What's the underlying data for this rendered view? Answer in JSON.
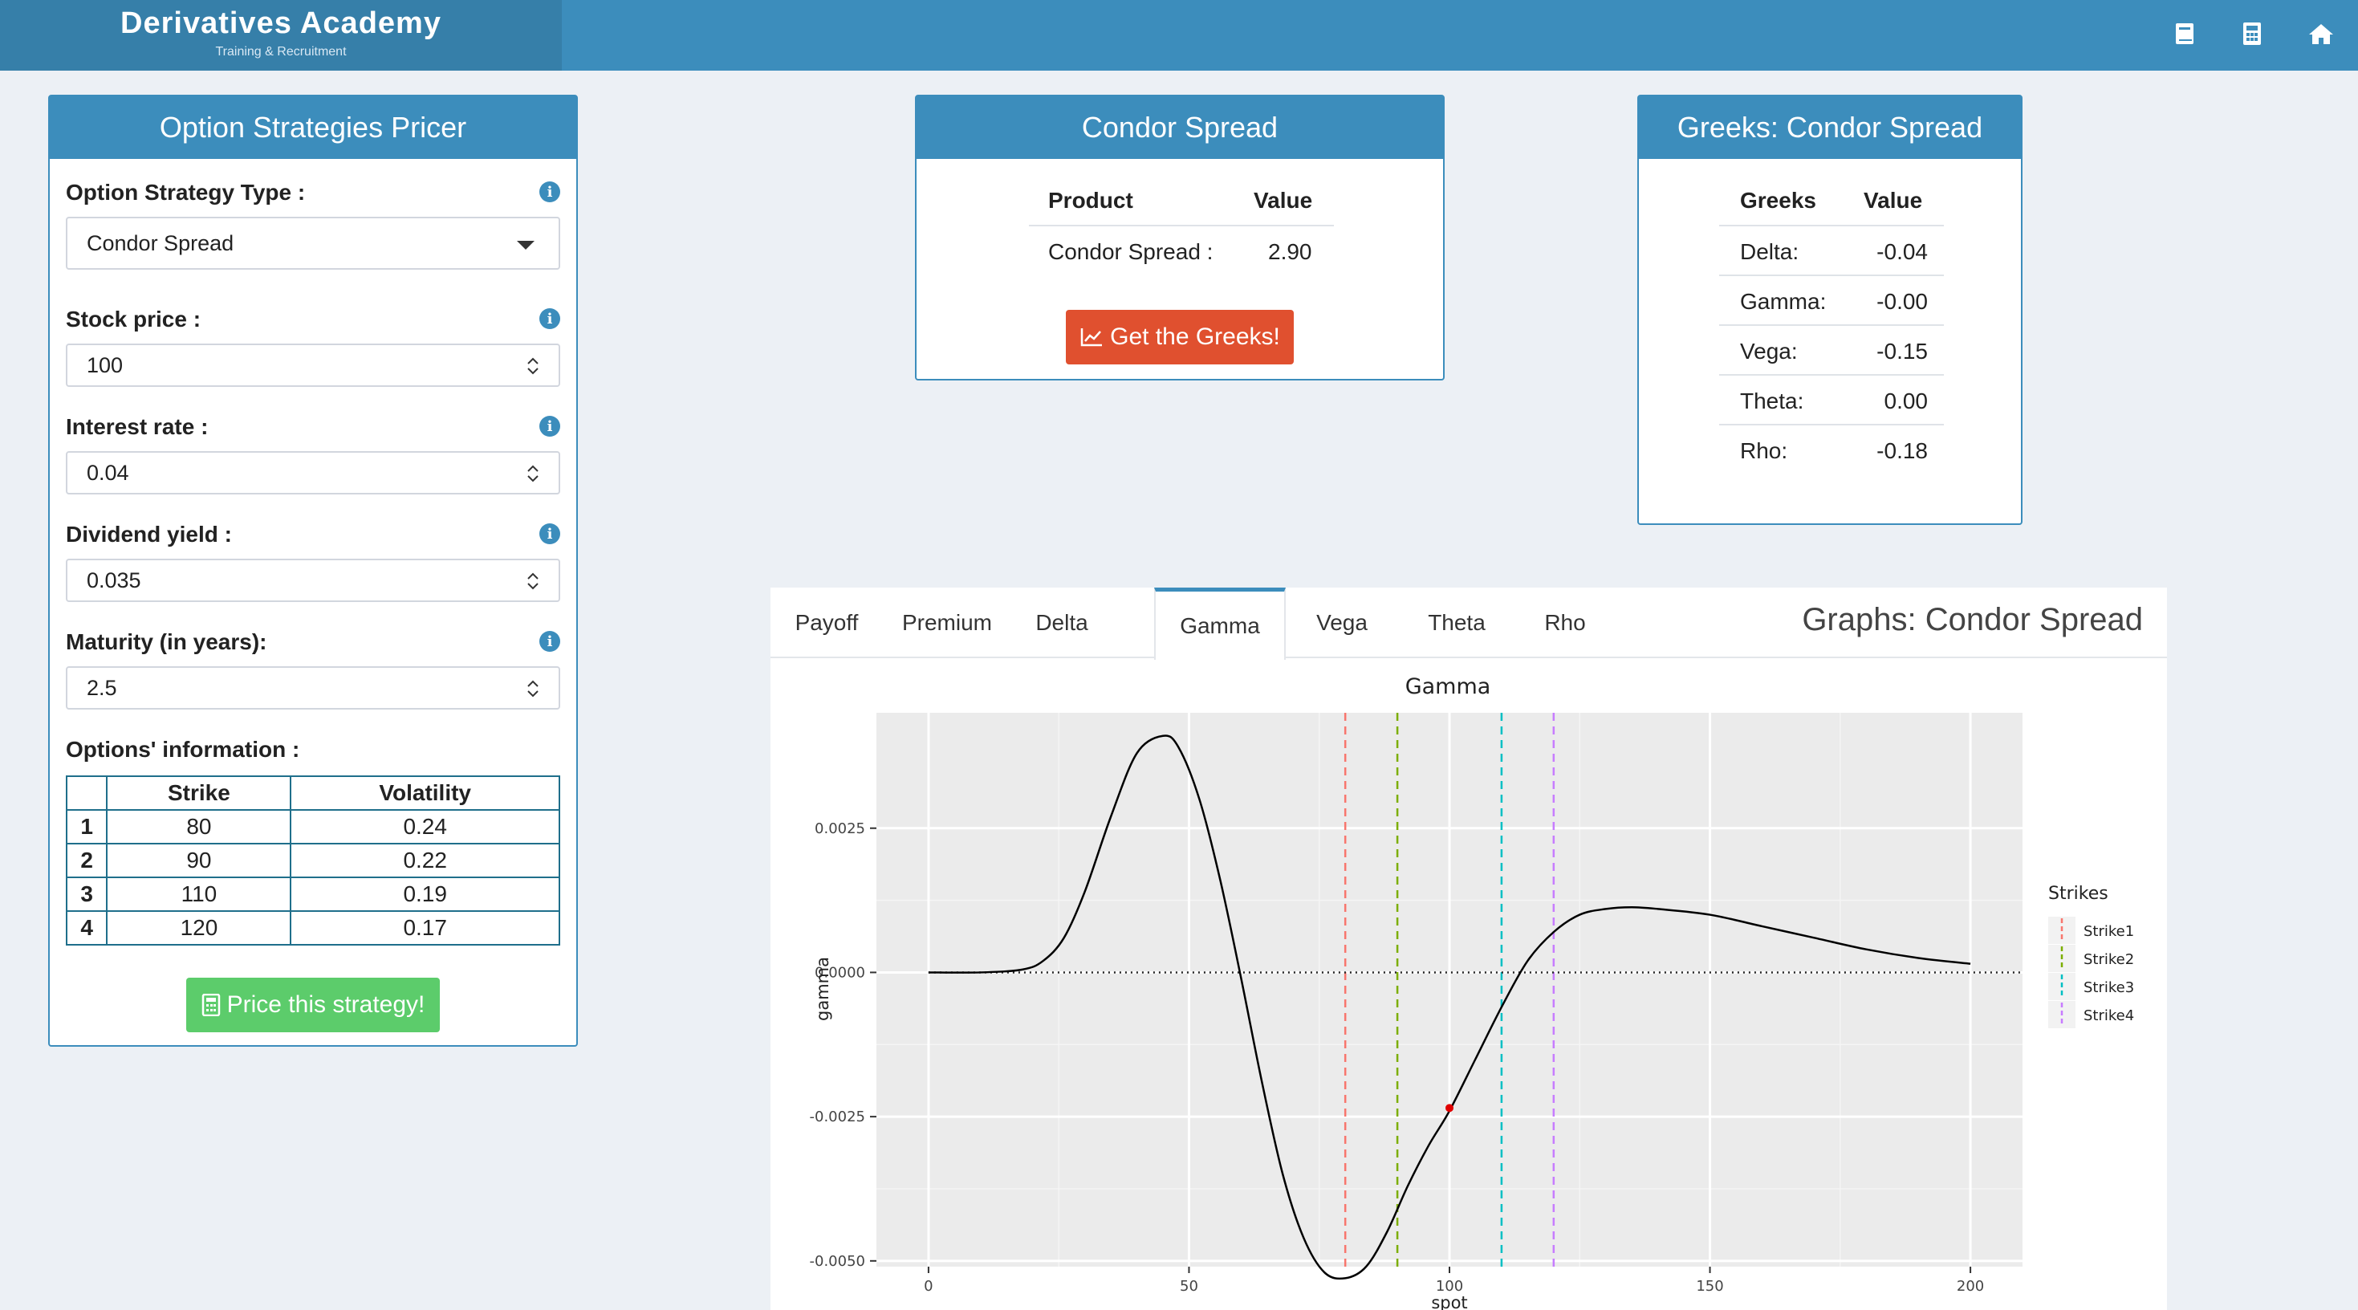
{
  "brand": {
    "title": "Derivatives Academy",
    "subtitle": "Training & Recruitment"
  },
  "header_icons": [
    "book-icon",
    "calculator-icon",
    "home-icon"
  ],
  "pricer": {
    "title": "Option Strategies Pricer",
    "strategy_label": "Option Strategy Type :",
    "strategy_value": "Condor Spread",
    "stock_label": "Stock price :",
    "stock_value": "100",
    "rate_label": "Interest rate :",
    "rate_value": "0.04",
    "div_label": "Dividend yield :",
    "div_value": "0.035",
    "maturity_label": "Maturity (in years):",
    "maturity_value": "2.5",
    "options_label": "Options' information :",
    "table_headers": [
      "",
      "Strike",
      "Volatility"
    ],
    "rows": [
      [
        "1",
        "80",
        "0.24"
      ],
      [
        "2",
        "90",
        "0.22"
      ],
      [
        "3",
        "110",
        "0.19"
      ],
      [
        "4",
        "120",
        "0.17"
      ]
    ],
    "price_button": "Price this strategy!"
  },
  "condor": {
    "title": "Condor Spread",
    "col_product": "Product",
    "col_value": "Value",
    "product": "Condor Spread :",
    "value": "2.90",
    "greeks_button": "Get the Greeks!"
  },
  "greeks": {
    "title": "Greeks: Condor Spread",
    "col_greeks": "Greeks",
    "col_value": "Value",
    "rows": [
      [
        "Delta:",
        "-0.04"
      ],
      [
        "Gamma:",
        "-0.00"
      ],
      [
        "Vega:",
        "-0.15"
      ],
      [
        "Theta:",
        "0.00"
      ],
      [
        "Rho:",
        "-0.18"
      ]
    ]
  },
  "graphs": {
    "tabs": [
      "Payoff",
      "Premium",
      "Delta",
      "Gamma",
      "Vega",
      "Theta",
      "Rho"
    ],
    "active_tab": "Gamma",
    "title": "Graphs: Condor Spread"
  },
  "chart_data": {
    "type": "line",
    "title": "Gamma",
    "xlabel": "spot",
    "ylabel": "gamma",
    "xlim": [
      -10,
      210
    ],
    "ylim": [
      -0.0051,
      0.0045
    ],
    "xticks": [
      0,
      50,
      100,
      150,
      200
    ],
    "yticks": [
      -0.005,
      -0.0025,
      0.0,
      0.0025
    ],
    "ytick_labels": [
      "-0.0050",
      "-0.0025",
      "0.0000",
      "0.0025"
    ],
    "grid": true,
    "series": [
      {
        "x": [
          0,
          10,
          18,
          22,
          26,
          30,
          35,
          40,
          45,
          48,
          52,
          56,
          60,
          64,
          68,
          72,
          76,
          80,
          84,
          88,
          92,
          96,
          100,
          105,
          110,
          115,
          120,
          125,
          130,
          135,
          140,
          150,
          160,
          170,
          180,
          190,
          200
        ],
        "y": [
          0.0,
          0.0,
          5e-05,
          0.0002,
          0.0006,
          0.0014,
          0.0027,
          0.0038,
          0.0041,
          0.0039,
          0.003,
          0.0016,
          -0.0001,
          -0.0019,
          -0.0035,
          -0.0046,
          -0.0052,
          -0.0053,
          -0.0051,
          -0.0045,
          -0.0037,
          -0.003,
          -0.0024,
          -0.0015,
          -0.0006,
          0.0002,
          0.0007,
          0.001,
          0.0011,
          0.00113,
          0.0011,
          0.001,
          0.0008,
          0.0006,
          0.0004,
          0.00025,
          0.00015
        ]
      }
    ],
    "current_point": {
      "x": 100,
      "y": -0.00235
    },
    "zero_line": 0.0,
    "strike_lines": [
      {
        "name": "Strike1",
        "x": 80,
        "color": "#F8766D"
      },
      {
        "name": "Strike2",
        "x": 90,
        "color": "#7CAE00"
      },
      {
        "name": "Strike3",
        "x": 110,
        "color": "#00BFC4"
      },
      {
        "name": "Strike4",
        "x": 120,
        "color": "#C77CFF"
      }
    ],
    "legend_title": "Strikes",
    "legend_position": "right"
  },
  "colors": {
    "primary": "#3c8dbc",
    "green": "#5ccc6b",
    "red": "#e0502f"
  }
}
